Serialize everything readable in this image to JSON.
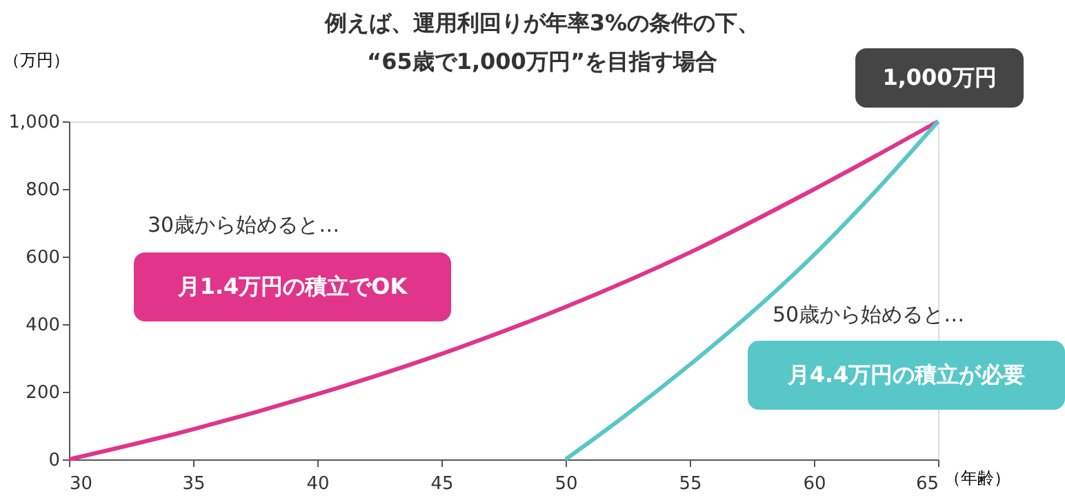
{
  "chart_data": {
    "type": "line",
    "title": [
      "例えば、運用利回りが年率3%の条件の下、",
      "“65歳で1,000万円”を目指す場合"
    ],
    "xlabel": "（年齢）",
    "ylabel": "（万円）",
    "xlim": [
      30,
      65
    ],
    "xticks": [
      30,
      35,
      40,
      45,
      50,
      55,
      60,
      65
    ],
    "ylim": [
      0,
      1000
    ],
    "yticks": [
      0,
      200,
      400,
      600,
      800,
      {
        "value": 1000,
        "label": "1,000"
      }
    ],
    "grid": false,
    "legend": false,
    "marker": "none",
    "line_style": "solid",
    "series": [
      {
        "color": "#e0358a",
        "x": [
          30,
          35,
          40,
          45,
          50,
          55,
          60,
          65
        ],
        "values": [
          0,
          89,
          193,
          312,
          451,
          612,
          799,
          1000
        ]
      },
      {
        "color": "#58c7c8",
        "x": [
          50,
          52.5,
          55,
          57.5,
          60,
          62.5,
          65
        ],
        "values": [
          0,
          135,
          280,
          435,
          605,
          795,
          1000
        ]
      }
    ],
    "annotations": [
      "30歳から始めると…",
      "月1.4万円の積立でOK",
      "50歳から始めると…",
      "月4.4万円の積立が必要",
      "1,000万円"
    ]
  }
}
